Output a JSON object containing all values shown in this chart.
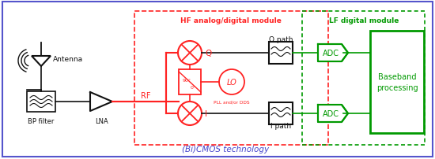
{
  "fig_width": 5.5,
  "fig_height": 2.03,
  "dpi": 100,
  "bg_color": "#ffffff",
  "outer_box_color": "#5555cc",
  "hf_box_color": "#ff2222",
  "lf_box_color": "#009900",
  "signal_color": "#ff2222",
  "green_color": "#009900",
  "black_color": "#111111",
  "blue_text_color": "#4444cc",
  "title_hf": "HF analog/digital module",
  "title_lf": "LF digital module",
  "label_bicmos": "(Bi)CMOS technology",
  "label_antenna": "Antenna",
  "label_bp": "BP filter",
  "label_lna": "LNA",
  "label_rf": "RF",
  "label_q": "Q",
  "label_i": "I",
  "label_lo": "LO",
  "label_pll": "PLL and/or DDS",
  "label_qpath": "Q path",
  "label_ipath": "I path",
  "label_adc": "ADC",
  "label_baseband": "Baseband\nprocessing"
}
